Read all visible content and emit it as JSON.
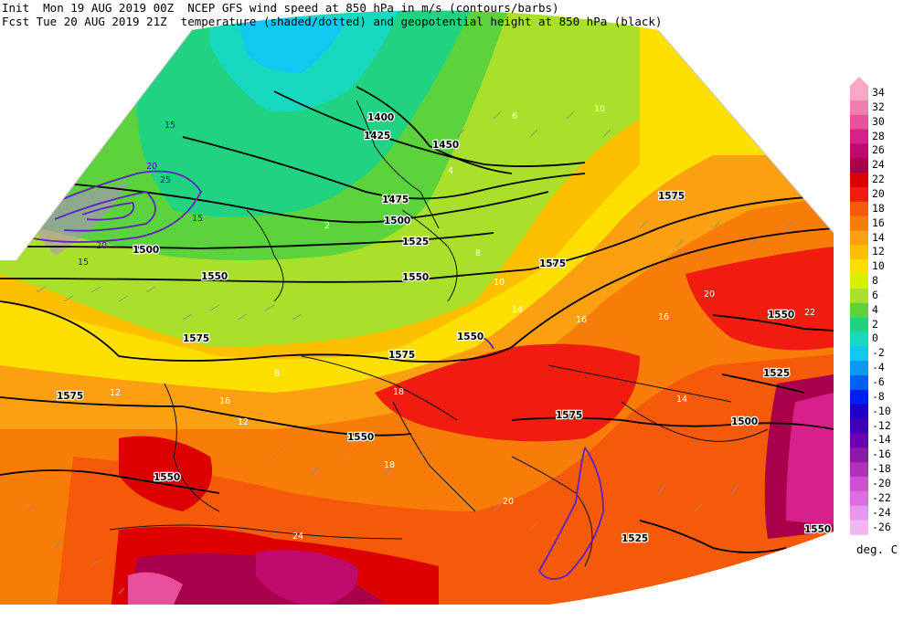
{
  "header": {
    "line1": "Init  Mon 19 AUG 2019 00Z  NCEP GFS wind speed at 850 hPa in m/s (contours/barbs)",
    "line2": "Fcst Tue 20 AUG 2019 21Z  temperature (shaded/dotted) and geopotential height at 850 hPa (black)"
  },
  "colorbar": {
    "units": "deg. C",
    "levels": [
      {
        "label": "34",
        "color": "#f7a8c4"
      },
      {
        "label": "32",
        "color": "#f080b0"
      },
      {
        "label": "30",
        "color": "#e8509c"
      },
      {
        "label": "28",
        "color": "#d8208a"
      },
      {
        "label": "26",
        "color": "#c00a6c"
      },
      {
        "label": "24",
        "color": "#a8004a"
      },
      {
        "label": "22",
        "color": "#dc0000"
      },
      {
        "label": "20",
        "color": "#f01c10"
      },
      {
        "label": "18",
        "color": "#f55a0a"
      },
      {
        "label": "16",
        "color": "#f87c08"
      },
      {
        "label": "14",
        "color": "#fba010"
      },
      {
        "label": "12",
        "color": "#fdc000"
      },
      {
        "label": "10",
        "color": "#fde000"
      },
      {
        "label": "8",
        "color": "#d8f000"
      },
      {
        "label": "6",
        "color": "#a8e02c"
      },
      {
        "label": "4",
        "color": "#5cd23c"
      },
      {
        "label": "2",
        "color": "#20d282"
      },
      {
        "label": "0",
        "color": "#18d8c0"
      },
      {
        "label": "-2",
        "color": "#10c8f0"
      },
      {
        "label": "-4",
        "color": "#0a98f0"
      },
      {
        "label": "-6",
        "color": "#0060f0"
      },
      {
        "label": "-8",
        "color": "#0020f0"
      },
      {
        "label": "-10",
        "color": "#2000c8"
      },
      {
        "label": "-12",
        "color": "#4000b8"
      },
      {
        "label": "-14",
        "color": "#6a00b0"
      },
      {
        "label": "-16",
        "color": "#8c1aa8"
      },
      {
        "label": "-18",
        "color": "#b030b8"
      },
      {
        "label": "-20",
        "color": "#cc50d0"
      },
      {
        "label": "-22",
        "color": "#dc6ee0"
      },
      {
        "label": "-24",
        "color": "#e898ec"
      },
      {
        "label": "-26",
        "color": "#f0b8f0"
      }
    ]
  },
  "map": {
    "height_labels": [
      {
        "text": "1400"
      },
      {
        "text": "1425"
      },
      {
        "text": "1450"
      },
      {
        "text": "1475"
      },
      {
        "text": "1500"
      },
      {
        "text": "1525"
      },
      {
        "text": "1550"
      },
      {
        "text": "1550"
      },
      {
        "text": "1550"
      },
      {
        "text": "1575"
      },
      {
        "text": "1575"
      },
      {
        "text": "1575"
      },
      {
        "text": "1575"
      },
      {
        "text": "1550"
      },
      {
        "text": "1575"
      },
      {
        "text": "1525"
      },
      {
        "text": "1500"
      },
      {
        "text": "1550"
      },
      {
        "text": "1525"
      },
      {
        "text": "1500"
      },
      {
        "text": "1550"
      },
      {
        "text": "1575"
      },
      {
        "text": "1550"
      }
    ],
    "temp_labels": [
      {
        "text": "2"
      },
      {
        "text": "4"
      },
      {
        "text": "6"
      },
      {
        "text": "8"
      },
      {
        "text": "10"
      },
      {
        "text": "12"
      },
      {
        "text": "14"
      },
      {
        "text": "16"
      },
      {
        "text": "18"
      },
      {
        "text": "20"
      },
      {
        "text": "22"
      },
      {
        "text": "24"
      },
      {
        "text": "8"
      },
      {
        "text": "10"
      },
      {
        "text": "12"
      },
      {
        "text": "16"
      },
      {
        "text": "18"
      },
      {
        "text": "14"
      },
      {
        "text": "20"
      },
      {
        "text": "16"
      }
    ],
    "wind_labels": [
      {
        "text": "15"
      },
      {
        "text": "20"
      },
      {
        "text": "25"
      },
      {
        "text": "15"
      },
      {
        "text": "20"
      },
      {
        "text": "15"
      }
    ]
  }
}
